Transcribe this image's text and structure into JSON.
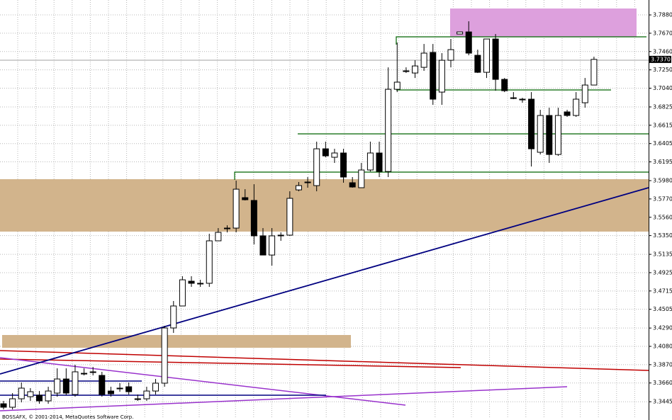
{
  "chart_data": {
    "type": "candlestick",
    "footer": "BOSSAFX, © 2001-2014, MetaQuotes Software Corp.",
    "ylim": [
      3.326,
      3.8051
    ],
    "yticks": [
      {
        "value": 3.788,
        "label": "3.7880"
      },
      {
        "value": 3.767,
        "label": "3.7670"
      },
      {
        "value": 3.746,
        "label": "3.7460"
      },
      {
        "value": 3.725,
        "label": "3.7250"
      },
      {
        "value": 3.704,
        "label": "3.7040"
      },
      3.6825,
      3.6615,
      3.6405,
      3.6195,
      {
        "value": 3.598,
        "label": "3.5980"
      },
      {
        "value": 3.577,
        "label": "3.5770"
      },
      {
        "value": 3.556,
        "label": "3.5560"
      },
      {
        "value": 3.535,
        "label": "3.5350"
      },
      3.5135,
      3.4925,
      3.4715,
      3.4505,
      {
        "value": 3.429,
        "label": "3.4290"
      },
      {
        "value": 3.408,
        "label": "3.4080"
      },
      {
        "value": 3.387,
        "label": "3.3870"
      },
      {
        "value": 3.366,
        "label": "3.3660"
      },
      3.3445
    ],
    "grid": true,
    "last_price": {
      "value": 3.737,
      "label": "3.7370"
    },
    "up_color": "#ffffff",
    "down_color": "#000000",
    "open": [
      3.3422,
      3.3382,
      3.3479,
      3.3503,
      3.352,
      3.3455,
      3.3544,
      3.3706,
      3.3528,
      3.3771,
      3.3788,
      3.3747,
      3.3568,
      3.3601,
      3.3617,
      3.3479,
      3.3479,
      3.3568,
      3.3658,
      3.4291,
      3.4543,
      3.4827,
      3.4803,
      3.4803,
      3.529,
      3.5436,
      3.5436,
      3.5785,
      3.5753,
      3.5347,
      3.5127,
      3.5355,
      3.5355,
      3.5874,
      3.5964,
      3.5923,
      3.6345,
      3.6248,
      3.6297,
      3.5956,
      3.5899,
      3.6102,
      3.6297,
      3.6085,
      3.7027,
      3.7239,
      3.7214,
      3.7279,
      3.745,
      3.6995,
      3.736,
      3.7661,
      3.7685,
      3.7417,
      3.7222,
      3.7604,
      3.7141,
      3.693,
      3.6914,
      3.6914,
      3.6305,
      3.6727,
      3.628,
      3.6768,
      3.6727,
      3.6873,
      3.7076
    ],
    "high": [
      3.3455,
      3.3544,
      3.3666,
      3.3601,
      3.3568,
      3.3617,
      3.3828,
      3.3828,
      3.3869,
      3.3828,
      3.3844,
      3.3788,
      3.3617,
      3.3658,
      3.3666,
      3.3528,
      3.3617,
      3.3706,
      3.4315,
      3.46,
      3.4884,
      3.4884,
      3.4843,
      3.5371,
      3.5436,
      3.5468,
      3.598,
      3.5882,
      3.5939,
      3.5436,
      3.5436,
      3.5387,
      3.5858,
      3.5964,
      3.6021,
      3.6427,
      3.6427,
      3.6345,
      3.6345,
      3.6021,
      3.6183,
      3.6427,
      3.6427,
      3.7279,
      3.7563,
      3.7279,
      3.736,
      3.7547,
      3.7547,
      3.7442,
      3.7604,
      3.7685,
      3.7807,
      3.7482,
      3.7604,
      3.7661,
      3.7157,
      3.6995,
      3.693,
      3.6995,
      3.6792,
      3.6816,
      3.6816,
      3.6792,
      3.6995,
      3.7157,
      3.7401
    ],
    "low": [
      3.3357,
      3.3357,
      3.3438,
      3.3455,
      3.3422,
      3.3422,
      3.3503,
      3.352,
      3.3503,
      3.3747,
      3.3747,
      3.3503,
      3.3503,
      3.356,
      3.3528,
      3.3455,
      3.3455,
      3.3528,
      3.3617,
      3.4234,
      3.4543,
      3.4762,
      3.4762,
      3.4762,
      3.529,
      3.5387,
      3.5387,
      3.5753,
      3.5249,
      3.5127,
      3.5006,
      3.529,
      3.5347,
      3.5858,
      3.5899,
      3.5858,
      3.6248,
      3.6183,
      3.5956,
      3.5899,
      3.5899,
      3.6085,
      3.6021,
      3.6021,
      3.6995,
      3.7214,
      3.7157,
      3.7239,
      3.6849,
      3.6849,
      3.7279,
      3.7661,
      3.7417,
      3.7214,
      3.7157,
      3.7011,
      3.6995,
      3.6914,
      3.6873,
      3.6142,
      3.628,
      3.6183,
      3.6264,
      3.6711,
      3.6711,
      3.6816,
      3.7076
    ],
    "close": [
      3.3382,
      3.3479,
      3.3601,
      3.356,
      3.3455,
      3.3568,
      3.3706,
      3.3544,
      3.3788,
      3.3771,
      3.3788,
      3.3528,
      3.3536,
      3.3601,
      3.356,
      3.3479,
      3.3568,
      3.3658,
      3.4291,
      3.4543,
      3.4843,
      3.4803,
      3.4803,
      3.529,
      3.5387,
      3.5436,
      3.5882,
      3.5761,
      3.5347,
      3.5127,
      3.5347,
      3.5355,
      3.5777,
      3.5923,
      3.5964,
      3.6345,
      3.6264,
      3.6297,
      3.6021,
      3.5907,
      3.6102,
      3.6297,
      3.6085,
      3.7027,
      3.7109,
      3.7239,
      3.7295,
      3.7442,
      3.6914,
      3.736,
      3.7482,
      3.7685,
      3.7442,
      3.7222,
      3.7604,
      3.7141,
      3.7011,
      3.693,
      3.6914,
      3.6345,
      3.6727,
      3.628,
      3.6727,
      3.6727,
      3.6914,
      3.7076,
      3.737
    ]
  }
}
